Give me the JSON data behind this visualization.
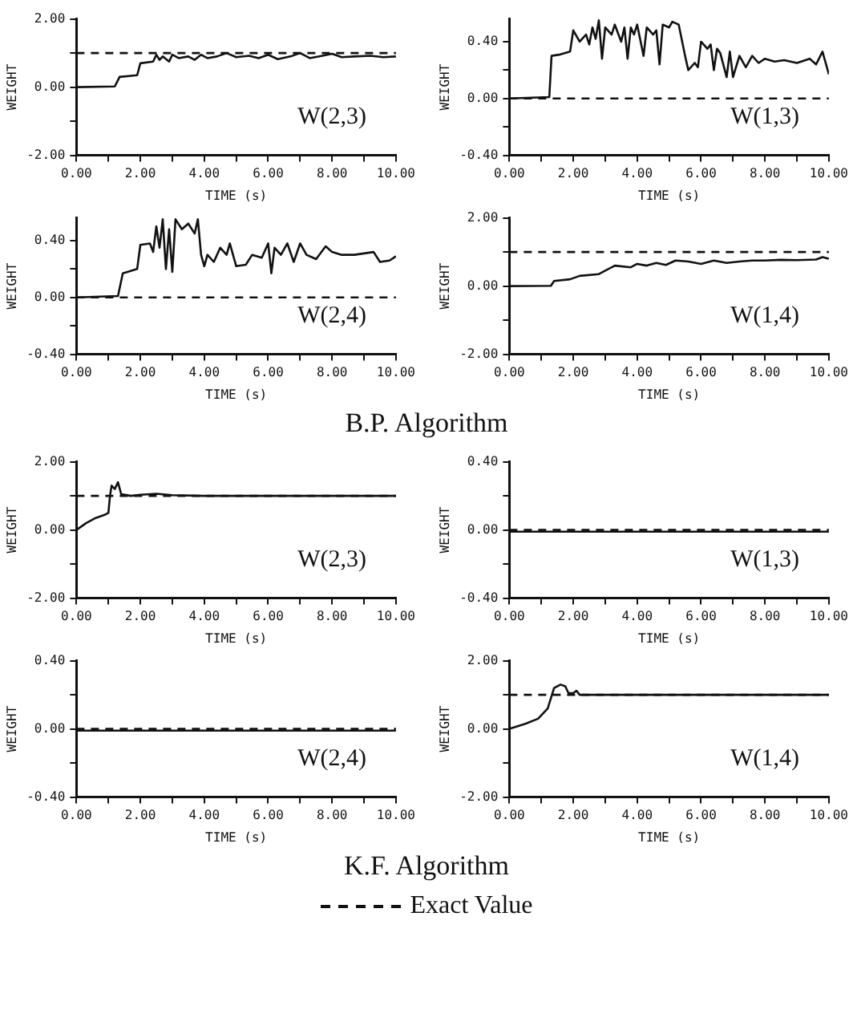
{
  "chart_data": [
    {
      "type": "line",
      "xlabel": "TIME (s)",
      "ylabel": "WEIGHT",
      "marker": "none",
      "annotations": [
        "W(2,3)"
      ],
      "xlim": [
        0,
        10
      ],
      "ylim": [
        -2,
        2
      ],
      "xticks": [
        {
          "value": 0,
          "label": "0.00"
        },
        {
          "value": 1,
          "label": null
        },
        {
          "value": 2,
          "label": "2.00"
        },
        {
          "value": 3,
          "label": null
        },
        {
          "value": 4,
          "label": "4.00"
        },
        {
          "value": 5,
          "label": null
        },
        {
          "value": 6,
          "label": "6.00"
        },
        {
          "value": 7,
          "label": null
        },
        {
          "value": 8,
          "label": "8.00"
        },
        {
          "value": 9,
          "label": null
        },
        {
          "value": 10,
          "label": "10.00"
        }
      ],
      "yticks": [
        {
          "value": -2,
          "label": "-2.00"
        },
        {
          "value": -1,
          "label": null
        },
        {
          "value": 0,
          "label": "0.00"
        },
        {
          "value": 1,
          "label": null
        },
        {
          "value": 2,
          "label": "2.00"
        }
      ],
      "series": [
        {
          "color": "#111111",
          "line_style": "dashed",
          "x": [
            0,
            10
          ],
          "values": [
            1,
            1
          ]
        },
        {
          "color": "#111111",
          "line_style": "solid",
          "x": [
            0,
            1.2,
            1.35,
            1.9,
            2.0,
            2.4,
            2.5,
            2.6,
            2.7,
            2.9,
            3.0,
            3.2,
            3.5,
            3.7,
            3.9,
            4.1,
            4.4,
            4.7,
            5.0,
            5.4,
            5.7,
            6.0,
            6.3,
            6.7,
            7.0,
            7.3,
            7.7,
            8.0,
            8.3,
            8.7,
            9.2,
            9.6,
            10
          ],
          "values": [
            0,
            0.02,
            0.3,
            0.35,
            0.7,
            0.75,
            0.95,
            0.8,
            0.9,
            0.75,
            0.95,
            0.85,
            0.9,
            0.8,
            0.95,
            0.85,
            0.9,
            1.0,
            0.88,
            0.92,
            0.85,
            0.95,
            0.82,
            0.9,
            1.0,
            0.85,
            0.92,
            0.98,
            0.88,
            0.9,
            0.92,
            0.88,
            0.9
          ]
        }
      ]
    },
    {
      "type": "line",
      "xlabel": "TIME (s)",
      "ylabel": "WEIGHT",
      "marker": "none",
      "annotations": [
        "W(1,3)"
      ],
      "xlim": [
        0,
        10
      ],
      "ylim": [
        -0.4,
        0.56
      ],
      "xticks": [
        {
          "value": 0,
          "label": "0.00"
        },
        {
          "value": 1,
          "label": null
        },
        {
          "value": 2,
          "label": "2.00"
        },
        {
          "value": 3,
          "label": null
        },
        {
          "value": 4,
          "label": "4.00"
        },
        {
          "value": 5,
          "label": null
        },
        {
          "value": 6,
          "label": "6.00"
        },
        {
          "value": 7,
          "label": null
        },
        {
          "value": 8,
          "label": "8.00"
        },
        {
          "value": 9,
          "label": null
        },
        {
          "value": 10,
          "label": "10.00"
        }
      ],
      "yticks": [
        {
          "value": -0.4,
          "label": "-0.40"
        },
        {
          "value": -0.2,
          "label": null
        },
        {
          "value": 0,
          "label": "0.00"
        },
        {
          "value": 0.2,
          "label": null
        },
        {
          "value": 0.4,
          "label": "0.40"
        }
      ],
      "series": [
        {
          "color": "#111111",
          "line_style": "dashed",
          "x": [
            0,
            10
          ],
          "values": [
            0,
            0
          ]
        },
        {
          "color": "#111111",
          "line_style": "solid",
          "x": [
            0,
            1.25,
            1.32,
            1.6,
            1.9,
            2.0,
            2.2,
            2.4,
            2.5,
            2.6,
            2.7,
            2.8,
            2.9,
            3.0,
            3.2,
            3.3,
            3.5,
            3.6,
            3.7,
            3.8,
            3.9,
            4.0,
            4.2,
            4.3,
            4.5,
            4.6,
            4.7,
            4.8,
            5.0,
            5.1,
            5.3,
            5.5,
            5.6,
            5.8,
            5.9,
            6.0,
            6.2,
            6.3,
            6.4,
            6.5,
            6.6,
            6.8,
            6.9,
            7.0,
            7.2,
            7.4,
            7.6,
            7.8,
            8.0,
            8.3,
            8.6,
            9.0,
            9.4,
            9.6,
            9.8,
            10
          ],
          "values": [
            0,
            0.01,
            0.3,
            0.31,
            0.33,
            0.48,
            0.4,
            0.45,
            0.38,
            0.5,
            0.42,
            0.55,
            0.28,
            0.5,
            0.45,
            0.52,
            0.4,
            0.5,
            0.28,
            0.5,
            0.45,
            0.52,
            0.3,
            0.5,
            0.45,
            0.48,
            0.24,
            0.52,
            0.5,
            0.54,
            0.52,
            0.3,
            0.2,
            0.25,
            0.22,
            0.4,
            0.35,
            0.38,
            0.2,
            0.35,
            0.32,
            0.15,
            0.33,
            0.15,
            0.3,
            0.22,
            0.3,
            0.25,
            0.28,
            0.26,
            0.27,
            0.25,
            0.28,
            0.24,
            0.33,
            0.17
          ]
        }
      ]
    },
    {
      "type": "line",
      "xlabel": "TIME (s)",
      "ylabel": "WEIGHT",
      "marker": "none",
      "annotations": [
        "W(2,4)"
      ],
      "xlim": [
        0,
        10
      ],
      "ylim": [
        -0.4,
        0.56
      ],
      "xticks": [
        {
          "value": 0,
          "label": "0.00"
        },
        {
          "value": 1,
          "label": null
        },
        {
          "value": 2,
          "label": "2.00"
        },
        {
          "value": 3,
          "label": null
        },
        {
          "value": 4,
          "label": "4.00"
        },
        {
          "value": 5,
          "label": null
        },
        {
          "value": 6,
          "label": "6.00"
        },
        {
          "value": 7,
          "label": null
        },
        {
          "value": 8,
          "label": "8.00"
        },
        {
          "value": 9,
          "label": null
        },
        {
          "value": 10,
          "label": "10.00"
        }
      ],
      "yticks": [
        {
          "value": -0.4,
          "label": "-0.40"
        },
        {
          "value": -0.2,
          "label": null
        },
        {
          "value": 0,
          "label": "0.00"
        },
        {
          "value": 0.2,
          "label": null
        },
        {
          "value": 0.4,
          "label": "0.40"
        }
      ],
      "series": [
        {
          "color": "#111111",
          "line_style": "dashed",
          "x": [
            0,
            10
          ],
          "values": [
            0,
            0
          ]
        },
        {
          "color": "#111111",
          "line_style": "solid",
          "x": [
            0,
            1.3,
            1.45,
            1.9,
            2.0,
            2.3,
            2.4,
            2.5,
            2.6,
            2.7,
            2.8,
            2.9,
            3.0,
            3.1,
            3.3,
            3.5,
            3.7,
            3.8,
            3.9,
            4.0,
            4.1,
            4.3,
            4.5,
            4.7,
            4.8,
            5.0,
            5.3,
            5.5,
            5.8,
            6.0,
            6.1,
            6.2,
            6.4,
            6.6,
            6.8,
            7.0,
            7.2,
            7.5,
            7.8,
            8.0,
            8.3,
            8.7,
            9.0,
            9.3,
            9.5,
            9.8,
            10
          ],
          "values": [
            0,
            0.01,
            0.17,
            0.2,
            0.37,
            0.38,
            0.32,
            0.5,
            0.35,
            0.55,
            0.2,
            0.48,
            0.18,
            0.55,
            0.48,
            0.52,
            0.45,
            0.55,
            0.3,
            0.22,
            0.3,
            0.25,
            0.35,
            0.3,
            0.38,
            0.22,
            0.23,
            0.3,
            0.28,
            0.38,
            0.17,
            0.35,
            0.3,
            0.38,
            0.25,
            0.38,
            0.3,
            0.27,
            0.36,
            0.32,
            0.3,
            0.3,
            0.31,
            0.32,
            0.25,
            0.26,
            0.29
          ]
        }
      ]
    },
    {
      "type": "line",
      "xlabel": "TIME (s)",
      "ylabel": "WEIGHT",
      "marker": "none",
      "annotations": [
        "W(1,4)",
        "B.P. Algorithm"
      ],
      "xlim": [
        0,
        10
      ],
      "ylim": [
        -2,
        2
      ],
      "xticks": [
        {
          "value": 0,
          "label": "0.00"
        },
        {
          "value": 1,
          "label": null
        },
        {
          "value": 2,
          "label": "2.00"
        },
        {
          "value": 3,
          "label": null
        },
        {
          "value": 4,
          "label": "4.00"
        },
        {
          "value": 5,
          "label": null
        },
        {
          "value": 6,
          "label": "6.00"
        },
        {
          "value": 7,
          "label": null
        },
        {
          "value": 8,
          "label": "8.00"
        },
        {
          "value": 9,
          "label": null
        },
        {
          "value": 10,
          "label": "10.00"
        }
      ],
      "yticks": [
        {
          "value": -2,
          "label": "-2.00"
        },
        {
          "value": -1,
          "label": null
        },
        {
          "value": 0,
          "label": "0.00"
        },
        {
          "value": 1,
          "label": null
        },
        {
          "value": 2,
          "label": "2.00"
        }
      ],
      "series": [
        {
          "color": "#111111",
          "line_style": "dashed",
          "x": [
            0,
            10
          ],
          "values": [
            1,
            1
          ]
        },
        {
          "color": "#111111",
          "line_style": "solid",
          "x": [
            0,
            1.3,
            1.4,
            1.9,
            2.2,
            2.8,
            3.0,
            3.3,
            3.8,
            4.0,
            4.3,
            4.6,
            4.9,
            5.2,
            5.6,
            6.0,
            6.4,
            6.8,
            7.2,
            7.6,
            8.0,
            8.5,
            9.0,
            9.6,
            9.8,
            10
          ],
          "values": [
            0,
            0.01,
            0.15,
            0.2,
            0.3,
            0.35,
            0.45,
            0.6,
            0.55,
            0.65,
            0.6,
            0.68,
            0.62,
            0.75,
            0.72,
            0.65,
            0.75,
            0.68,
            0.72,
            0.75,
            0.75,
            0.77,
            0.76,
            0.78,
            0.85,
            0.8
          ]
        }
      ]
    },
    {
      "type": "line",
      "xlabel": "TIME (s)",
      "ylabel": "WEIGHT",
      "marker": "none",
      "annotations": [
        "W(2,3)"
      ],
      "xlim": [
        0,
        10
      ],
      "ylim": [
        -2,
        2
      ],
      "xticks": [
        {
          "value": 0,
          "label": "0.00"
        },
        {
          "value": 1,
          "label": null
        },
        {
          "value": 2,
          "label": "2.00"
        },
        {
          "value": 3,
          "label": null
        },
        {
          "value": 4,
          "label": "4.00"
        },
        {
          "value": 5,
          "label": null
        },
        {
          "value": 6,
          "label": "6.00"
        },
        {
          "value": 7,
          "label": null
        },
        {
          "value": 8,
          "label": "8.00"
        },
        {
          "value": 9,
          "label": null
        },
        {
          "value": 10,
          "label": "10.00"
        }
      ],
      "yticks": [
        {
          "value": -2,
          "label": "-2.00"
        },
        {
          "value": -1,
          "label": null
        },
        {
          "value": 0,
          "label": "0.00"
        },
        {
          "value": 1,
          "label": null
        },
        {
          "value": 2,
          "label": "2.00"
        }
      ],
      "series": [
        {
          "color": "#111111",
          "line_style": "dashed",
          "x": [
            0,
            10
          ],
          "values": [
            1,
            1
          ]
        },
        {
          "color": "#111111",
          "line_style": "solid",
          "x": [
            0,
            0.3,
            0.6,
            0.9,
            1.0,
            1.05,
            1.1,
            1.2,
            1.3,
            1.4,
            1.7,
            2.0,
            2.5,
            3.0,
            4.0,
            10
          ],
          "values": [
            0,
            0.2,
            0.35,
            0.45,
            0.5,
            1.0,
            1.3,
            1.2,
            1.4,
            1.05,
            1.0,
            1.03,
            1.06,
            1.02,
            1.0,
            1.0
          ]
        }
      ]
    },
    {
      "type": "line",
      "xlabel": "TIME (s)",
      "ylabel": "WEIGHT",
      "marker": "none",
      "annotations": [
        "W(1,3)"
      ],
      "xlim": [
        0,
        10
      ],
      "ylim": [
        -0.4,
        0.4
      ],
      "xticks": [
        {
          "value": 0,
          "label": "0.00"
        },
        {
          "value": 1,
          "label": null
        },
        {
          "value": 2,
          "label": "2.00"
        },
        {
          "value": 3,
          "label": null
        },
        {
          "value": 4,
          "label": "4.00"
        },
        {
          "value": 5,
          "label": null
        },
        {
          "value": 6,
          "label": "6.00"
        },
        {
          "value": 7,
          "label": null
        },
        {
          "value": 8,
          "label": "8.00"
        },
        {
          "value": 9,
          "label": null
        },
        {
          "value": 10,
          "label": "10.00"
        }
      ],
      "yticks": [
        {
          "value": -0.4,
          "label": "-0.40"
        },
        {
          "value": -0.2,
          "label": null
        },
        {
          "value": 0,
          "label": "0.00"
        },
        {
          "value": 0.2,
          "label": null
        },
        {
          "value": 0.4,
          "label": "0.40"
        }
      ],
      "series": [
        {
          "color": "#111111",
          "line_style": "dashed",
          "x": [
            0,
            10
          ],
          "values": [
            0,
            0
          ]
        },
        {
          "color": "#111111",
          "line_style": "solid",
          "x": [
            0,
            10
          ],
          "values": [
            -0.01,
            -0.01
          ]
        }
      ]
    },
    {
      "type": "line",
      "xlabel": "TIME (s)",
      "ylabel": "WEIGHT",
      "marker": "none",
      "annotations": [
        "W(2,4)"
      ],
      "xlim": [
        0,
        10
      ],
      "ylim": [
        -0.4,
        0.4
      ],
      "xticks": [
        {
          "value": 0,
          "label": "0.00"
        },
        {
          "value": 1,
          "label": null
        },
        {
          "value": 2,
          "label": "2.00"
        },
        {
          "value": 3,
          "label": null
        },
        {
          "value": 4,
          "label": "4.00"
        },
        {
          "value": 5,
          "label": null
        },
        {
          "value": 6,
          "label": "6.00"
        },
        {
          "value": 7,
          "label": null
        },
        {
          "value": 8,
          "label": "8.00"
        },
        {
          "value": 9,
          "label": null
        },
        {
          "value": 10,
          "label": "10.00"
        }
      ],
      "yticks": [
        {
          "value": -0.4,
          "label": "-0.40"
        },
        {
          "value": -0.2,
          "label": null
        },
        {
          "value": 0,
          "label": "0.00"
        },
        {
          "value": 0.2,
          "label": null
        },
        {
          "value": 0.4,
          "label": "0.40"
        }
      ],
      "series": [
        {
          "color": "#111111",
          "line_style": "dashed",
          "x": [
            0,
            10
          ],
          "values": [
            0,
            0
          ]
        },
        {
          "color": "#111111",
          "line_style": "solid",
          "x": [
            0,
            10
          ],
          "values": [
            -0.01,
            -0.01
          ]
        }
      ]
    },
    {
      "type": "line",
      "xlabel": "TIME (s)",
      "ylabel": "WEIGHT",
      "marker": "none",
      "legend": "bottom",
      "annotations": [
        "W(1,4)",
        "K.F. Algorithm"
      ],
      "xlim": [
        0,
        10
      ],
      "ylim": [
        -2,
        2
      ],
      "xticks": [
        {
          "value": 0,
          "label": "0.00"
        },
        {
          "value": 1,
          "label": null
        },
        {
          "value": 2,
          "label": "2.00"
        },
        {
          "value": 3,
          "label": null
        },
        {
          "value": 4,
          "label": "4.00"
        },
        {
          "value": 5,
          "label": null
        },
        {
          "value": 6,
          "label": "6.00"
        },
        {
          "value": 7,
          "label": null
        },
        {
          "value": 8,
          "label": "8.00"
        },
        {
          "value": 9,
          "label": null
        },
        {
          "value": 10,
          "label": "10.00"
        }
      ],
      "yticks": [
        {
          "value": -2,
          "label": "-2.00"
        },
        {
          "value": -1,
          "label": null
        },
        {
          "value": 0,
          "label": "0.00"
        },
        {
          "value": 1,
          "label": null
        },
        {
          "value": 2,
          "label": "2.00"
        }
      ],
      "series": [
        {
          "name": "Exact Value",
          "color": "#111111",
          "line_style": "dashed",
          "x": [
            0,
            10
          ],
          "values": [
            1,
            1
          ]
        },
        {
          "color": "#111111",
          "line_style": "solid",
          "x": [
            0,
            0.5,
            0.9,
            1.2,
            1.4,
            1.6,
            1.75,
            1.85,
            2.0,
            2.1,
            2.2,
            10
          ],
          "values": [
            0,
            0.15,
            0.3,
            0.6,
            1.2,
            1.3,
            1.25,
            1.05,
            1.05,
            1.12,
            1.0,
            1.0
          ]
        }
      ]
    }
  ]
}
